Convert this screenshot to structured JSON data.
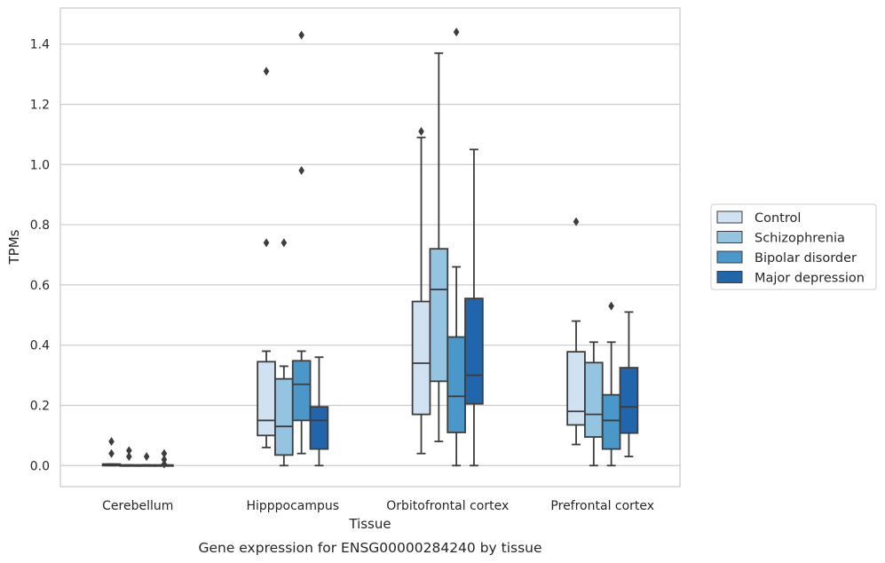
{
  "chart_data": {
    "type": "box",
    "title": "",
    "caption": "Gene expression for ENSG00000284240 by tissue",
    "xlabel": "Tissue",
    "ylabel": "TPMs",
    "ylim": [
      -0.07,
      1.52
    ],
    "yticks": [
      "0.0",
      "0.2",
      "0.4",
      "0.6",
      "0.8",
      "1.0",
      "1.2",
      "1.4"
    ],
    "ytick_values": [
      0,
      0.2,
      0.4,
      0.6,
      0.8,
      1.0,
      1.2,
      1.4
    ],
    "grid": "horizontal",
    "legend_position": "right",
    "categories": [
      "Cerebellum",
      "Hipppocampus",
      "Orbitofrontal cortex",
      "Prefrontal cortex"
    ],
    "series": [
      {
        "name": "Control",
        "color": "#d0e1f2",
        "boxes": [
          {
            "whislo": 0.0,
            "q1": 0.0,
            "med": 0.0,
            "q3": 0.005,
            "whishi": 0.005,
            "fliers": [
              0.08,
              0.04
            ]
          },
          {
            "whislo": 0.06,
            "q1": 0.1,
            "med": 0.15,
            "q3": 0.345,
            "whishi": 0.38,
            "fliers": [
              1.31,
              0.74
            ]
          },
          {
            "whislo": 0.04,
            "q1": 0.17,
            "med": 0.34,
            "q3": 0.545,
            "whishi": 1.09,
            "fliers": [
              1.11
            ]
          },
          {
            "whislo": 0.07,
            "q1": 0.135,
            "med": 0.18,
            "q3": 0.378,
            "whishi": 0.48,
            "fliers": [
              0.81
            ]
          }
        ]
      },
      {
        "name": "Schizophrenia",
        "color": "#94c4df",
        "boxes": [
          {
            "whislo": 0.0,
            "q1": 0.0,
            "med": 0.0,
            "q3": 0.002,
            "whishi": 0.002,
            "fliers": [
              0.05,
              0.03
            ]
          },
          {
            "whislo": 0.0,
            "q1": 0.035,
            "med": 0.13,
            "q3": 0.288,
            "whishi": 0.33,
            "fliers": [
              0.74
            ]
          },
          {
            "whislo": 0.08,
            "q1": 0.28,
            "med": 0.585,
            "q3": 0.72,
            "whishi": 1.37,
            "fliers": []
          },
          {
            "whislo": 0.0,
            "q1": 0.095,
            "med": 0.17,
            "q3": 0.342,
            "whishi": 0.41,
            "fliers": []
          }
        ]
      },
      {
        "name": "Bipolar disorder",
        "color": "#4a98c9",
        "boxes": [
          {
            "whislo": 0.0,
            "q1": 0.0,
            "med": 0.0,
            "q3": 0.002,
            "whishi": 0.002,
            "fliers": [
              0.03
            ]
          },
          {
            "whislo": 0.04,
            "q1": 0.15,
            "med": 0.27,
            "q3": 0.348,
            "whishi": 0.38,
            "fliers": [
              1.43,
              0.98
            ]
          },
          {
            "whislo": 0.0,
            "q1": 0.11,
            "med": 0.23,
            "q3": 0.427,
            "whishi": 0.66,
            "fliers": [
              1.44
            ]
          },
          {
            "whislo": 0.0,
            "q1": 0.055,
            "med": 0.15,
            "q3": 0.235,
            "whishi": 0.41,
            "fliers": [
              0.53
            ]
          }
        ]
      },
      {
        "name": "Major depression",
        "color": "#2166ac",
        "boxes": [
          {
            "whislo": 0.0,
            "q1": 0.0,
            "med": 0.0,
            "q3": 0.002,
            "whishi": 0.002,
            "fliers": [
              0.04,
              0.02,
              0.005
            ]
          },
          {
            "whislo": 0.0,
            "q1": 0.055,
            "med": 0.15,
            "q3": 0.195,
            "whishi": 0.36,
            "fliers": []
          },
          {
            "whislo": 0.0,
            "q1": 0.205,
            "med": 0.3,
            "q3": 0.555,
            "whishi": 1.05,
            "fliers": []
          },
          {
            "whislo": 0.03,
            "q1": 0.108,
            "med": 0.195,
            "q3": 0.325,
            "whishi": 0.51,
            "fliers": []
          }
        ]
      }
    ]
  }
}
